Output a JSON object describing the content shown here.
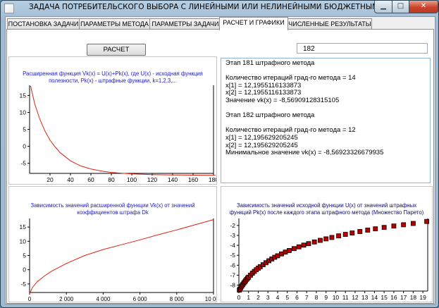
{
  "window": {
    "title": "ЗАДАЧА ПОТРЕБИТЕЛЬСКОГО ВЫБОРА С ЛИНЕЙНЫМИ ИЛИ НЕЛИНЕЙНЫМИ БЮДЖЕТНЫМИ ОГРАНИЧЕНИЯМИ.",
    "minimize_glyph": "▁",
    "maximize_glyph": "□",
    "close_glyph": "✕"
  },
  "tabs": [
    {
      "label": "ПОСТАНОВКА ЗАДАЧИ"
    },
    {
      "label": "ПАРАМЕТРЫ МЕТОДА"
    },
    {
      "label": "ПАРАМЕТРЫ ЗАДАЧИ"
    },
    {
      "label": "РАСЧЕТ И ГРАФИКИ"
    },
    {
      "label": "ЧИСЛЕННЫЕ РЕЗУЛЬТАТЫ"
    }
  ],
  "toolbar": {
    "calc_label": "РАСЧЕТ",
    "stage_value": "182"
  },
  "log_lines": [
    "Этап 181 штрафного метода",
    "",
    "Количество итераций град-го метода = 14",
    "x[1] = 12,1955116133873",
    "x[2] = 12,1955116133873",
    "Значение vk(x) = -8,56909128315105",
    "",
    "Этап 182 штрафного метода",
    "",
    "Количество итераций град-го метода = 12",
    "x[1] = 12,195629205245",
    "x[2] = 12,195629205245",
    "Минимальное значение vk(x) = -8,56923326679935"
  ],
  "colors": {
    "series_line": "#e02010",
    "marker_fill": "#b30000",
    "title_blue": "#1a1ad0"
  },
  "chart_data": [
    {
      "type": "line",
      "title_lines": [
        "Расширенная функция Vk(x) = U(x)+Pk(x), где U(x) - исходная функция",
        "полезности, Pk(x) - штрафные функции, k=1,2,3,..."
      ],
      "xlabel": "",
      "ylabel": "",
      "xlim": [
        0,
        180
      ],
      "ylim": [
        -8,
        18
      ],
      "x_ticks": [
        20,
        40,
        60,
        80,
        100,
        120,
        140,
        160,
        180
      ],
      "y_ticks": [
        15,
        10,
        5,
        0,
        -5
      ],
      "x": [
        1,
        5,
        10,
        15,
        20,
        25,
        30,
        40,
        50,
        60,
        70,
        80,
        90,
        100,
        110,
        120,
        140,
        160,
        182
      ],
      "y": [
        17.8,
        12.5,
        8.0,
        4.5,
        1.8,
        -0.2,
        -1.9,
        -4.3,
        -5.8,
        -6.7,
        -7.3,
        -7.7,
        -7.95,
        -8.15,
        -8.28,
        -8.36,
        -8.45,
        -8.52,
        -8.57
      ],
      "grid": false
    },
    {
      "type": "line",
      "title_lines": [
        "Зависимость значений расширенной функции Vk(x) от значений",
        "коэффициентов штрафа Dk"
      ],
      "xlabel": "",
      "ylabel": "",
      "xlim": [
        0,
        10000
      ],
      "ylim": [
        -8,
        18
      ],
      "x_ticks": [
        0,
        2000,
        4000,
        6000,
        8000,
        10000
      ],
      "x_tick_labels": [
        "0",
        "2 000",
        "4 000",
        "6 000",
        "8 000",
        "10 000"
      ],
      "y_ticks": [
        15,
        10,
        5,
        0,
        -5
      ],
      "x": [
        0,
        150,
        400,
        800,
        1200,
        2000,
        3000,
        4000,
        5000,
        6000,
        7000,
        8000,
        9000,
        10000
      ],
      "y": [
        -8.5,
        -6.3,
        -4.3,
        -2.2,
        -0.5,
        2.2,
        5.0,
        7.1,
        8.8,
        10.5,
        12.3,
        14.0,
        15.8,
        17.6
      ],
      "grid": false
    },
    {
      "type": "scatter",
      "title_lines": [
        "Зависимость значений исходной функции U(x) от значений штрафных",
        "функций Pk(x) после каждого этапа штрафного метода (Множество Парето)"
      ],
      "xlabel": "",
      "ylabel": "",
      "xlim": [
        0,
        19.5
      ],
      "ylim": [
        -8.6,
        -1.3
      ],
      "x_ticks": [
        0,
        1,
        2,
        3,
        4,
        5,
        6,
        7,
        8,
        9,
        10,
        11,
        12,
        13,
        14,
        15,
        16,
        17,
        18,
        19
      ],
      "y_ticks": [
        -2,
        -3,
        -4,
        -5,
        -6,
        -7,
        -8
      ],
      "x": [
        0.05,
        0.1,
        0.2,
        0.3,
        0.4,
        0.5,
        0.6,
        0.7,
        0.8,
        0.9,
        1.0,
        1.2,
        1.4,
        1.6,
        1.8,
        2.0,
        2.2,
        2.5,
        2.8,
        3.1,
        3.4,
        3.7,
        4.0,
        4.4,
        4.8,
        5.2,
        5.7,
        6.2,
        6.7,
        7.2,
        7.8,
        8.4,
        9.0,
        9.6,
        10.3,
        11.0,
        11.7,
        12.5,
        13.3,
        14.1,
        15.0,
        16.0,
        17.0,
        18.0,
        19.4
      ],
      "y": [
        -8.5,
        -8.4,
        -8.25,
        -8.1,
        -7.95,
        -7.8,
        -7.68,
        -7.55,
        -7.42,
        -7.3,
        -7.2,
        -7.0,
        -6.8,
        -6.62,
        -6.45,
        -6.3,
        -6.15,
        -5.95,
        -5.75,
        -5.55,
        -5.37,
        -5.2,
        -5.05,
        -4.86,
        -4.68,
        -4.52,
        -4.33,
        -4.15,
        -3.98,
        -3.83,
        -3.66,
        -3.5,
        -3.35,
        -3.21,
        -3.05,
        -2.9,
        -2.76,
        -2.61,
        -2.47,
        -2.34,
        -2.2,
        -2.06,
        -1.93,
        -1.8,
        -1.6
      ],
      "grid": false
    }
  ]
}
